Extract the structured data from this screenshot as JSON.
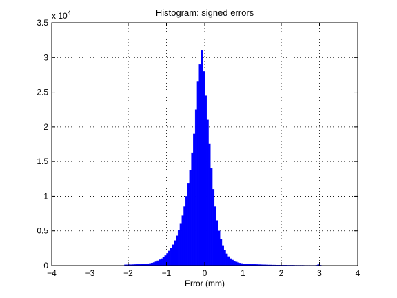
{
  "chart_data": {
    "type": "bar",
    "title": "Histogram: signed errors",
    "xlabel": "Error (mm)",
    "ylabel": "",
    "xlim": [
      -4,
      4
    ],
    "ylim": [
      0,
      35000
    ],
    "x_ticks": [
      -4,
      -3,
      -2,
      -1,
      0,
      1,
      2,
      3,
      4
    ],
    "x_tick_labels": [
      "−4",
      "−3",
      "−2",
      "−1",
      "0",
      "1",
      "2",
      "3",
      "4"
    ],
    "y_ticks": [
      0,
      5000,
      10000,
      15000,
      20000,
      25000,
      30000,
      35000
    ],
    "y_tick_labels": [
      "0",
      "0.5",
      "1",
      "1.5",
      "2",
      "2.5",
      "3",
      "3.5"
    ],
    "y_exponent_prefix": "x 10",
    "y_exponent_power": "4",
    "grid": true,
    "bar_color": "#0000ff",
    "bin_width": 0.05,
    "bins": [
      {
        "x": -2.075,
        "y": 120
      },
      {
        "x": -2.025,
        "y": 130
      },
      {
        "x": -1.975,
        "y": 150
      },
      {
        "x": -1.925,
        "y": 140
      },
      {
        "x": -1.875,
        "y": 150
      },
      {
        "x": -1.825,
        "y": 160
      },
      {
        "x": -1.775,
        "y": 170
      },
      {
        "x": -1.725,
        "y": 180
      },
      {
        "x": -1.675,
        "y": 190
      },
      {
        "x": -1.625,
        "y": 200
      },
      {
        "x": -1.575,
        "y": 220
      },
      {
        "x": -1.525,
        "y": 250
      },
      {
        "x": -1.475,
        "y": 280
      },
      {
        "x": -1.425,
        "y": 320
      },
      {
        "x": -1.375,
        "y": 380
      },
      {
        "x": -1.325,
        "y": 450
      },
      {
        "x": -1.275,
        "y": 550
      },
      {
        "x": -1.225,
        "y": 700
      },
      {
        "x": -1.175,
        "y": 850
      },
      {
        "x": -1.125,
        "y": 1000
      },
      {
        "x": -1.075,
        "y": 1200
      },
      {
        "x": -1.025,
        "y": 1450
      },
      {
        "x": -0.975,
        "y": 1750
      },
      {
        "x": -0.925,
        "y": 2100
      },
      {
        "x": -0.875,
        "y": 2500
      },
      {
        "x": -0.825,
        "y": 3000
      },
      {
        "x": -0.775,
        "y": 3600
      },
      {
        "x": -0.725,
        "y": 4300
      },
      {
        "x": -0.675,
        "y": 5100
      },
      {
        "x": -0.625,
        "y": 6100
      },
      {
        "x": -0.575,
        "y": 7200
      },
      {
        "x": -0.525,
        "y": 8500
      },
      {
        "x": -0.475,
        "y": 10000
      },
      {
        "x": -0.425,
        "y": 11800
      },
      {
        "x": -0.375,
        "y": 13800
      },
      {
        "x": -0.325,
        "y": 16200
      },
      {
        "x": -0.275,
        "y": 19000
      },
      {
        "x": -0.225,
        "y": 22500
      },
      {
        "x": -0.175,
        "y": 26500
      },
      {
        "x": -0.125,
        "y": 29000
      },
      {
        "x": -0.075,
        "y": 31000
      },
      {
        "x": -0.025,
        "y": 28000
      },
      {
        "x": 0.025,
        "y": 24500
      },
      {
        "x": 0.075,
        "y": 21000
      },
      {
        "x": 0.125,
        "y": 17500
      },
      {
        "x": 0.175,
        "y": 14000
      },
      {
        "x": 0.225,
        "y": 11000
      },
      {
        "x": 0.275,
        "y": 8500
      },
      {
        "x": 0.325,
        "y": 6500
      },
      {
        "x": 0.375,
        "y": 5000
      },
      {
        "x": 0.425,
        "y": 3800
      },
      {
        "x": 0.475,
        "y": 2900
      },
      {
        "x": 0.525,
        "y": 2200
      },
      {
        "x": 0.575,
        "y": 1700
      },
      {
        "x": 0.625,
        "y": 1300
      },
      {
        "x": 0.675,
        "y": 1000
      },
      {
        "x": 0.725,
        "y": 800
      },
      {
        "x": 0.775,
        "y": 650
      },
      {
        "x": 0.825,
        "y": 520
      },
      {
        "x": 0.875,
        "y": 430
      },
      {
        "x": 0.925,
        "y": 360
      },
      {
        "x": 0.975,
        "y": 310
      },
      {
        "x": 1.025,
        "y": 270
      },
      {
        "x": 1.075,
        "y": 240
      },
      {
        "x": 1.125,
        "y": 220
      },
      {
        "x": 1.175,
        "y": 200
      },
      {
        "x": 1.225,
        "y": 190
      },
      {
        "x": 1.275,
        "y": 180
      },
      {
        "x": 1.325,
        "y": 170
      },
      {
        "x": 1.375,
        "y": 160
      },
      {
        "x": 1.425,
        "y": 150
      },
      {
        "x": 1.475,
        "y": 140
      },
      {
        "x": 1.525,
        "y": 130
      },
      {
        "x": 1.575,
        "y": 120
      },
      {
        "x": 1.625,
        "y": 110
      },
      {
        "x": 1.675,
        "y": 100
      },
      {
        "x": 1.725,
        "y": 100
      },
      {
        "x": 1.775,
        "y": 90
      },
      {
        "x": 1.825,
        "y": 90
      },
      {
        "x": 1.875,
        "y": 80
      },
      {
        "x": 1.925,
        "y": 80
      },
      {
        "x": 1.975,
        "y": 80
      },
      {
        "x": 2.025,
        "y": 70
      },
      {
        "x": 2.075,
        "y": 70
      },
      {
        "x": 2.125,
        "y": 70
      },
      {
        "x": 2.175,
        "y": 60
      },
      {
        "x": 2.225,
        "y": 60
      },
      {
        "x": 2.275,
        "y": 60
      },
      {
        "x": 2.325,
        "y": 60
      },
      {
        "x": 2.375,
        "y": 50
      },
      {
        "x": 2.425,
        "y": 50
      },
      {
        "x": 2.475,
        "y": 50
      },
      {
        "x": 2.525,
        "y": 50
      },
      {
        "x": 2.575,
        "y": 50
      },
      {
        "x": 2.625,
        "y": 40
      },
      {
        "x": 2.675,
        "y": 40
      },
      {
        "x": 2.725,
        "y": 40
      },
      {
        "x": 2.775,
        "y": 40
      },
      {
        "x": 2.825,
        "y": 40
      },
      {
        "x": 2.875,
        "y": 40
      },
      {
        "x": 2.925,
        "y": 60
      },
      {
        "x": 2.975,
        "y": 150
      },
      {
        "x": 3.025,
        "y": 60
      },
      {
        "x": 3.075,
        "y": 30
      }
    ]
  }
}
